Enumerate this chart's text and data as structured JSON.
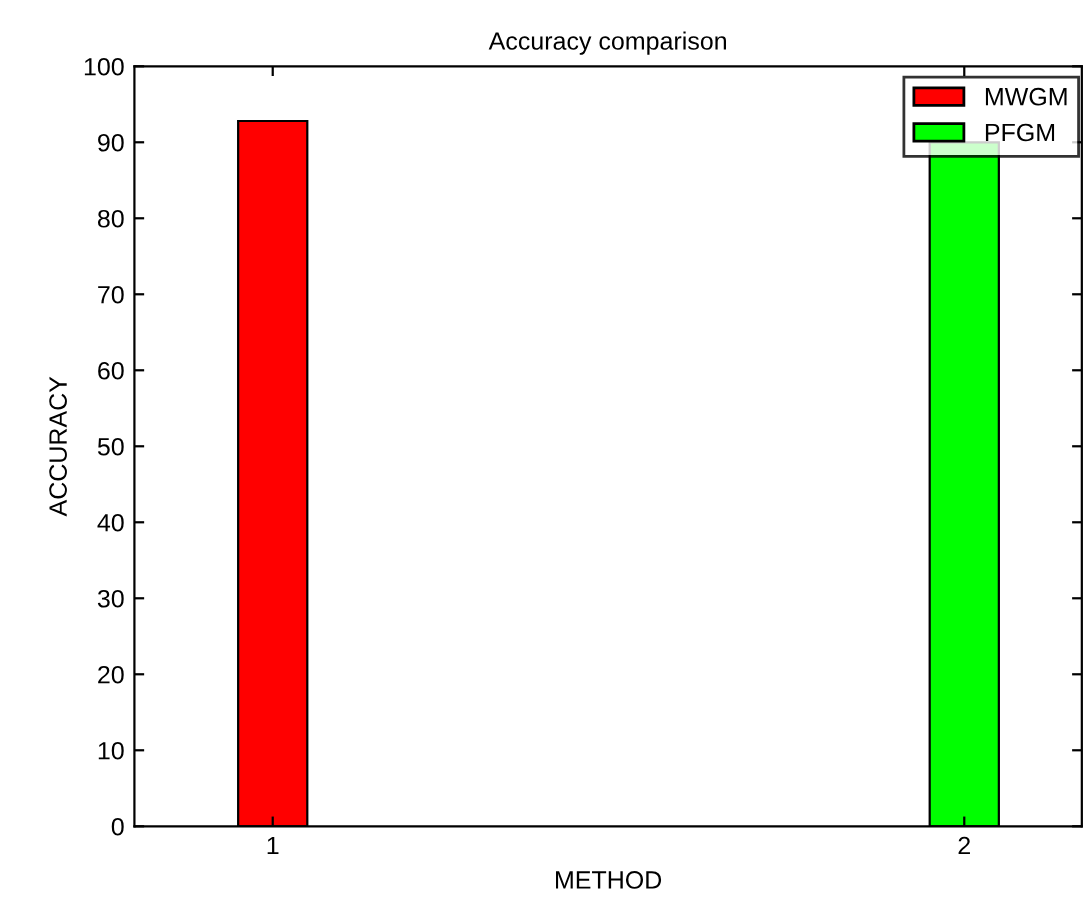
{
  "chart_data": {
    "type": "bar",
    "title": "Accuracy comparison",
    "xlabel": "METHOD",
    "ylabel": "ACCURACY",
    "xlim": [
      0.8,
      2.17
    ],
    "xticks": [
      1,
      2
    ],
    "ylim": [
      0,
      100
    ],
    "yticks": [
      0,
      10,
      20,
      30,
      40,
      50,
      60,
      70,
      80,
      90,
      100
    ],
    "series": [
      {
        "name": "MWGM",
        "color": "#ff0000",
        "x": [
          1
        ],
        "values": [
          92.8
        ]
      },
      {
        "name": "PFGM",
        "color": "#00ff00",
        "x": [
          2
        ],
        "values": [
          90
        ]
      }
    ],
    "legend": "top right",
    "grid": false
  }
}
